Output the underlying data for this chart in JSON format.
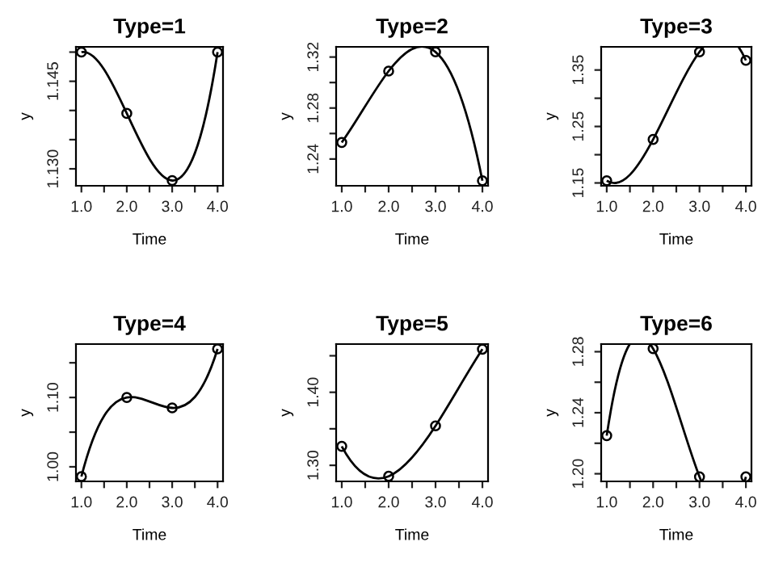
{
  "chart_data": [
    {
      "type": "line",
      "title": "Type=1",
      "xlabel": "Time",
      "ylabel": "y",
      "x": [
        1,
        2,
        3,
        4
      ],
      "series": [
        {
          "color": "#000000",
          "values": [
            1.15,
            1.1395,
            1.128,
            1.15
          ]
        }
      ],
      "xlim": [
        0.88,
        4.12
      ],
      "ylim": [
        1.1271,
        1.1509
      ],
      "xticks": [
        {
          "value": 1,
          "label": "1.0"
        },
        {
          "value": 1.5,
          "label": null
        },
        {
          "value": 2,
          "label": "2.0"
        },
        {
          "value": 2.5,
          "label": null
        },
        {
          "value": 3,
          "label": "3.0"
        },
        {
          "value": 3.5,
          "label": null
        },
        {
          "value": 4,
          "label": "4.0"
        }
      ],
      "yticks": [
        {
          "value": 1.13,
          "label": "1.130"
        },
        {
          "value": 1.135,
          "label": null
        },
        {
          "value": 1.14,
          "label": null
        },
        {
          "value": 1.145,
          "label": "1.145"
        },
        {
          "value": 1.15,
          "label": null
        }
      ],
      "marker": "circle",
      "line_style": "solid",
      "grid": false
    },
    {
      "type": "line",
      "title": "Type=2",
      "xlabel": "Time",
      "ylabel": "y",
      "x": [
        1,
        2,
        3,
        4
      ],
      "series": [
        {
          "color": "#000000",
          "values": [
            1.253,
            1.309,
            1.324,
            1.223
          ]
        }
      ],
      "xlim": [
        0.88,
        4.12
      ],
      "ylim": [
        1.219,
        1.328
      ],
      "xticks": [
        {
          "value": 1,
          "label": "1.0"
        },
        {
          "value": 1.5,
          "label": null
        },
        {
          "value": 2,
          "label": "2.0"
        },
        {
          "value": 2.5,
          "label": null
        },
        {
          "value": 3,
          "label": "3.0"
        },
        {
          "value": 3.5,
          "label": null
        },
        {
          "value": 4,
          "label": "4.0"
        }
      ],
      "yticks": [
        {
          "value": 1.24,
          "label": "1.24"
        },
        {
          "value": 1.26,
          "label": null
        },
        {
          "value": 1.28,
          "label": "1.28"
        },
        {
          "value": 1.3,
          "label": null
        },
        {
          "value": 1.32,
          "label": "1.32"
        }
      ],
      "marker": "circle",
      "line_style": "solid",
      "grid": false
    },
    {
      "type": "line",
      "title": "Type=3",
      "xlabel": "Time",
      "ylabel": "y",
      "x": [
        1,
        2,
        3,
        4
      ],
      "series": [
        {
          "color": "#000000",
          "values": [
            1.154,
            1.227,
            1.382,
            1.367
          ]
        }
      ],
      "xlim": [
        0.88,
        4.12
      ],
      "ylim": [
        1.145,
        1.391
      ],
      "xticks": [
        {
          "value": 1,
          "label": "1.0"
        },
        {
          "value": 1.5,
          "label": null
        },
        {
          "value": 2,
          "label": "2.0"
        },
        {
          "value": 2.5,
          "label": null
        },
        {
          "value": 3,
          "label": "3.0"
        },
        {
          "value": 3.5,
          "label": null
        },
        {
          "value": 4,
          "label": "4.0"
        }
      ],
      "yticks": [
        {
          "value": 1.15,
          "label": "1.15"
        },
        {
          "value": 1.2,
          "label": null
        },
        {
          "value": 1.25,
          "label": "1.25"
        },
        {
          "value": 1.3,
          "label": null
        },
        {
          "value": 1.35,
          "label": "1.35"
        }
      ],
      "marker": "circle",
      "line_style": "solid",
      "grid": false
    },
    {
      "type": "line",
      "title": "Type=4",
      "xlabel": "Time",
      "ylabel": "y",
      "x": [
        1,
        2,
        3,
        4
      ],
      "series": [
        {
          "color": "#000000",
          "values": [
            0.986,
            1.1,
            1.085,
            1.17
          ]
        }
      ],
      "xlim": [
        0.88,
        4.12
      ],
      "ylim": [
        0.979,
        1.177
      ],
      "xticks": [
        {
          "value": 1,
          "label": "1.0"
        },
        {
          "value": 1.5,
          "label": null
        },
        {
          "value": 2,
          "label": "2.0"
        },
        {
          "value": 2.5,
          "label": null
        },
        {
          "value": 3,
          "label": "3.0"
        },
        {
          "value": 3.5,
          "label": null
        },
        {
          "value": 4,
          "label": "4.0"
        }
      ],
      "yticks": [
        {
          "value": 1.0,
          "label": "1.00"
        },
        {
          "value": 1.05,
          "label": null
        },
        {
          "value": 1.1,
          "label": "1.10"
        },
        {
          "value": 1.15,
          "label": null
        }
      ],
      "marker": "circle",
      "line_style": "solid",
      "grid": false
    },
    {
      "type": "line",
      "title": "Type=5",
      "xlabel": "Time",
      "ylabel": "y",
      "x": [
        1,
        2,
        3,
        4
      ],
      "series": [
        {
          "color": "#000000",
          "values": [
            1.326,
            1.285,
            1.354,
            1.459
          ]
        }
      ],
      "xlim": [
        0.88,
        4.12
      ],
      "ylim": [
        1.278,
        1.466
      ],
      "xticks": [
        {
          "value": 1,
          "label": "1.0"
        },
        {
          "value": 1.5,
          "label": null
        },
        {
          "value": 2,
          "label": "2.0"
        },
        {
          "value": 2.5,
          "label": null
        },
        {
          "value": 3,
          "label": "3.0"
        },
        {
          "value": 3.5,
          "label": null
        },
        {
          "value": 4,
          "label": "4.0"
        }
      ],
      "yticks": [
        {
          "value": 1.3,
          "label": "1.30"
        },
        {
          "value": 1.35,
          "label": null
        },
        {
          "value": 1.4,
          "label": "1.40"
        },
        {
          "value": 1.45,
          "label": null
        }
      ],
      "marker": "circle",
      "line_style": "solid",
      "grid": false
    },
    {
      "type": "line",
      "title": "Type=6",
      "xlabel": "Time",
      "ylabel": "y",
      "x": [
        1,
        2,
        3,
        4
      ],
      "series": [
        {
          "color": "#000000",
          "values": [
            1.225,
            1.282,
            1.198,
            1.198
          ]
        }
      ],
      "xlim": [
        0.88,
        4.12
      ],
      "ylim": [
        1.195,
        1.285
      ],
      "xticks": [
        {
          "value": 1,
          "label": "1.0"
        },
        {
          "value": 1.5,
          "label": null
        },
        {
          "value": 2,
          "label": "2.0"
        },
        {
          "value": 2.5,
          "label": null
        },
        {
          "value": 3,
          "label": "3.0"
        },
        {
          "value": 3.5,
          "label": null
        },
        {
          "value": 4,
          "label": "4.0"
        }
      ],
      "yticks": [
        {
          "value": 1.2,
          "label": "1.20"
        },
        {
          "value": 1.22,
          "label": null
        },
        {
          "value": 1.24,
          "label": "1.24"
        },
        {
          "value": 1.26,
          "label": null
        },
        {
          "value": 1.28,
          "label": "1.28"
        }
      ],
      "marker": "circle",
      "line_style": "solid",
      "grid": false
    }
  ]
}
